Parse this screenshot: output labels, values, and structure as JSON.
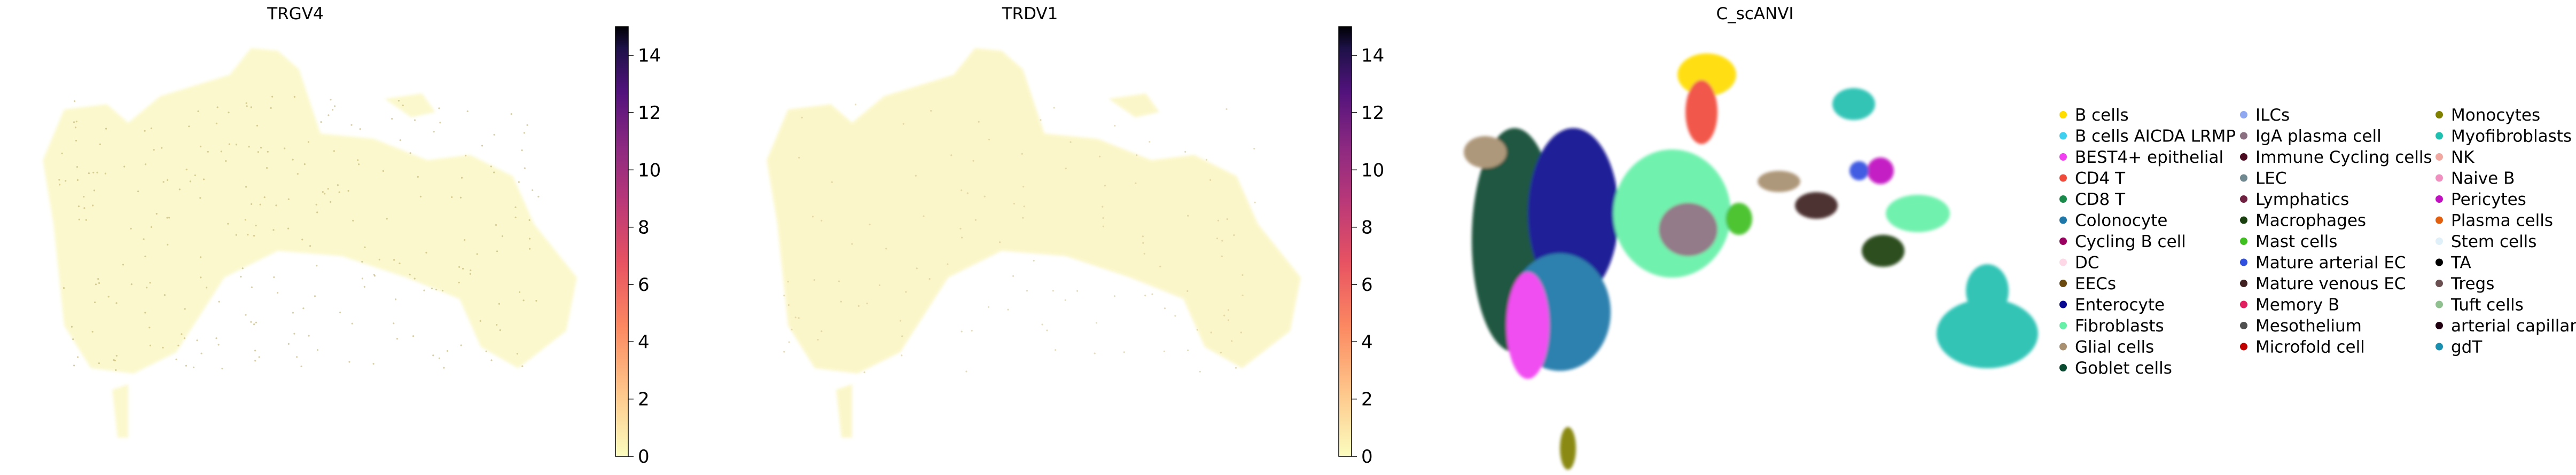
{
  "chart_data": [
    {
      "type": "scatter",
      "title": "TRGV4",
      "colorbar": {
        "cmap": "magma_r",
        "range": [
          0,
          15
        ],
        "ticks": [
          0,
          2,
          4,
          6,
          8,
          10,
          12,
          14
        ]
      },
      "grid": false,
      "description_of_values": "mostly 0 (pale yellow) with sparse low positive values"
    },
    {
      "type": "scatter",
      "title": "TRDV1",
      "colorbar": {
        "cmap": "magma_r",
        "range": [
          0,
          15
        ],
        "ticks": [
          0,
          2,
          4,
          6,
          8,
          10,
          12,
          14
        ]
      },
      "grid": false
    },
    {
      "type": "scatter",
      "title": "C_scANVI",
      "grid": false,
      "legend_placement": "right",
      "legend_columns": [
        [
          "B cells",
          "B cells AICDA LRMP",
          "BEST4+ epithelial",
          "CD4 T",
          "CD8 T",
          "Colonocyte",
          "Cycling B cell",
          "DC",
          "EECs",
          "Enterocyte",
          "Fibroblasts",
          "Glial cells",
          "Goblet cells"
        ],
        [
          "ILCs",
          "IgA plasma cell",
          "Immune Cycling cells",
          "LEC",
          "Lymphatics",
          "Macrophages",
          "Mast cells",
          "Mature arterial EC",
          "Mature venous EC",
          "Memory B",
          "Mesothelium",
          "Microfold cell"
        ],
        [
          "Monocytes",
          "Myofibroblasts",
          "NK",
          "Naive B",
          "Pericytes",
          "Plasma cells",
          "Stem cells",
          "TA",
          "Tregs",
          "Tuft cells",
          "arterial capillary",
          "gdT"
        ]
      ],
      "categories": [
        {
          "name": "B cells",
          "color": "#ffdd00"
        },
        {
          "name": "B cells AICDA LRMP",
          "color": "#3fd0f0"
        },
        {
          "name": "BEST4+ epithelial",
          "color": "#f040f0"
        },
        {
          "name": "CD4 T",
          "color": "#f04a3a"
        },
        {
          "name": "CD8 T",
          "color": "#1a8a4a"
        },
        {
          "name": "Colonocyte",
          "color": "#1f77a8"
        },
        {
          "name": "Cycling B cell",
          "color": "#9a0060"
        },
        {
          "name": "DC",
          "color": "#ffd8e8"
        },
        {
          "name": "EECs",
          "color": "#6b4a10"
        },
        {
          "name": "Enterocyte",
          "color": "#0a0a90"
        },
        {
          "name": "Fibroblasts",
          "color": "#66f0a8"
        },
        {
          "name": "Glial cells",
          "color": "#a89070"
        },
        {
          "name": "Goblet cells",
          "color": "#0a4a30"
        },
        {
          "name": "ILCs",
          "color": "#90a8f0"
        },
        {
          "name": "IgA plasma cell",
          "color": "#8a7080"
        },
        {
          "name": "Immune Cycling cells",
          "color": "#4a0a20"
        },
        {
          "name": "LEC",
          "color": "#708890"
        },
        {
          "name": "Lymphatics",
          "color": "#702040"
        },
        {
          "name": "Macrophages",
          "color": "#1a4010"
        },
        {
          "name": "Mast cells",
          "color": "#40c020"
        },
        {
          "name": "Mature arterial EC",
          "color": "#3050e0"
        },
        {
          "name": "Mature venous EC",
          "color": "#402020"
        },
        {
          "name": "Memory B",
          "color": "#e02060"
        },
        {
          "name": "Mesothelium",
          "color": "#505050"
        },
        {
          "name": "Microfold cell",
          "color": "#c00000"
        },
        {
          "name": "Monocytes",
          "color": "#808000"
        },
        {
          "name": "Myofibroblasts",
          "color": "#20c0b0"
        },
        {
          "name": "NK",
          "color": "#f0a8a0"
        },
        {
          "name": "Naive B",
          "color": "#f090c0"
        },
        {
          "name": "Pericytes",
          "color": "#c010c0"
        },
        {
          "name": "Plasma cells",
          "color": "#e06010"
        },
        {
          "name": "Stem cells",
          "color": "#e0f0f8"
        },
        {
          "name": "TA",
          "color": "#000000"
        },
        {
          "name": "Tregs",
          "color": "#6a5050"
        },
        {
          "name": "Tuft cells",
          "color": "#90c090"
        },
        {
          "name": "arterial capillary",
          "color": "#200010"
        },
        {
          "name": "gdT",
          "color": "#1a90b0"
        }
      ]
    }
  ]
}
